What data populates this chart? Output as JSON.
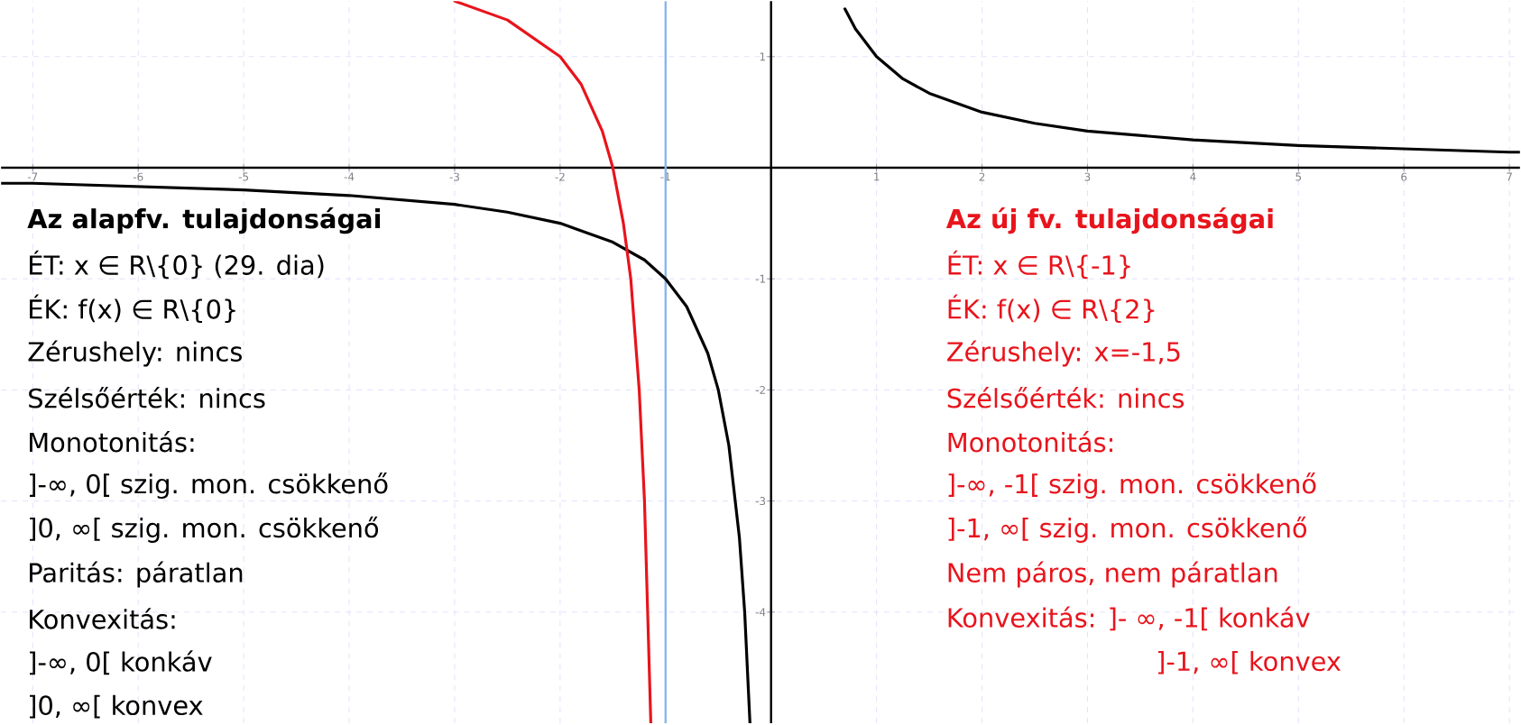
{
  "chart_data": {
    "type": "line",
    "xlim": [
      -7.3,
      7.1
    ],
    "ylim": [
      -5,
      1.5
    ],
    "xticks": [
      -7,
      -6,
      -5,
      -4,
      -3,
      -2,
      -1,
      1,
      2,
      3,
      4,
      5,
      6,
      7
    ],
    "yticks": [
      -4,
      -3,
      -2,
      -1,
      1
    ],
    "grid": true,
    "series": [
      {
        "color": "#000000",
        "x": [
          -7.3,
          -7,
          -6,
          -5,
          -4,
          -3,
          -2.5,
          -2,
          -1.5,
          -1.2,
          -1,
          -0.8,
          -0.6,
          -0.5,
          -0.4,
          -0.3,
          -0.25,
          -0.2,
          0,
          0.7,
          0.8,
          1,
          1.25,
          1.5,
          2,
          2.5,
          3,
          4,
          5,
          6,
          7,
          7.1
        ],
        "values": [
          -0.14,
          -0.14,
          -0.17,
          -0.2,
          -0.25,
          -0.33,
          -0.4,
          -0.5,
          -0.67,
          -0.83,
          -1,
          -1.25,
          -1.67,
          -2,
          -2.5,
          -3.33,
          -4,
          -5,
          null,
          1.43,
          1.25,
          1,
          0.8,
          0.67,
          0.5,
          0.4,
          0.33,
          0.25,
          0.2,
          0.17,
          0.14,
          0.14
        ]
      },
      {
        "color": "#e8141c",
        "x": [
          -3,
          -2.5,
          -2,
          -1.8,
          -1.6,
          -1.5,
          -1.4,
          -1.33,
          -1.25,
          -1.2,
          -1.17,
          -1.14
        ],
        "values": [
          1.5,
          1.33,
          1,
          0.75,
          0.33,
          0,
          -0.5,
          -1,
          -2,
          -3,
          -4,
          -5
        ]
      }
    ],
    "ref_lines": [
      {
        "axis": "x",
        "value": -1,
        "color": "#8ab6e8"
      }
    ],
    "annotations": [
      "**Az alapfv. tulajdonságai**",
      "ÉT:  x ∈ R\\{0}    (29. dia)",
      "ÉK: f(x) ∈ R\\{0}",
      "Zérushely: nincs",
      "Szélsőérték: nincs",
      "Monotonitás:",
      "]-∞, 0[ szig. mon. csökkenő",
      "]0, ∞[ szig. mon. csökkenő",
      "Paritás: páratlan",
      "Konvexitás:",
      "]-∞, 0[   konkáv",
      "]0, ∞[   konvex",
      "**Az új fv. tulajdonságai**",
      "ÉT:  x ∈ R\\{-1}",
      "ÉK: f(x) ∈ R\\{2}",
      "Zérushely: x=-1,5",
      "Szélsőérték: nincs",
      "Monotonitás:",
      "]-∞, -1[ szig. mon. csökkenő",
      "]-1, ∞[ szig. mon. csökkenő",
      "Nem páros, nem páratlan",
      "Konvexitás: ]- ∞, -1[   konkáv",
      "]-1, ∞[   konvex"
    ]
  }
}
